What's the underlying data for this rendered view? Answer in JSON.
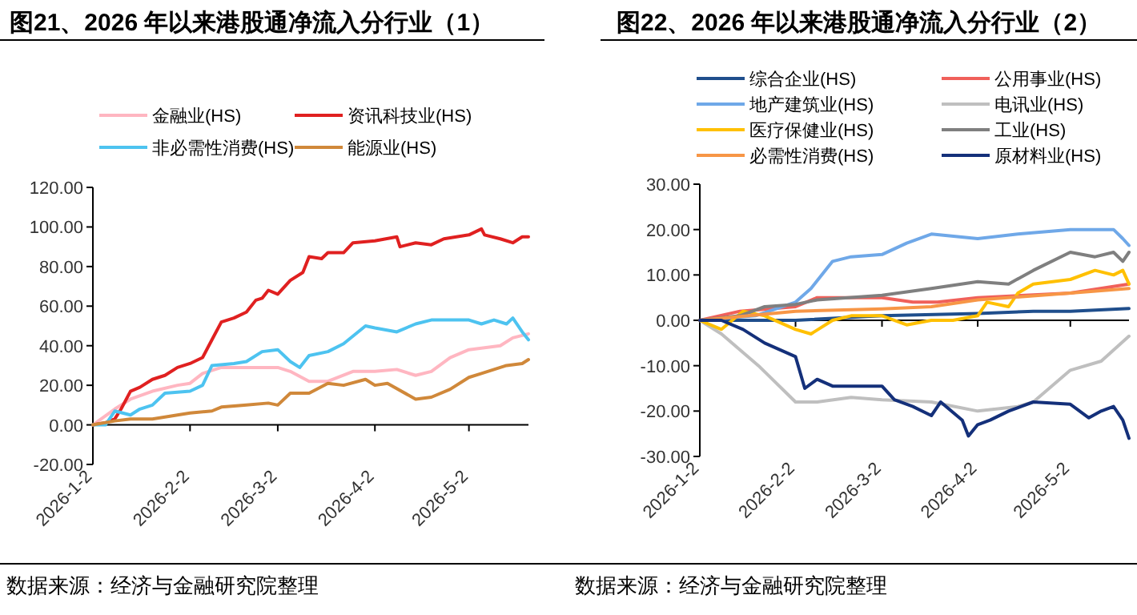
{
  "chart_data": [
    {
      "type": "line",
      "title": "图21、2026 年以来港股通净流入分行业（1）",
      "legend": "top",
      "xlim": [
        "2026-01-02",
        "2026-05-21"
      ],
      "xticks": [
        {
          "value": "2026-01-02",
          "label": "2026-1-2"
        },
        {
          "value": "2026-02-02",
          "label": "2026-2-2"
        },
        {
          "value": "2026-03-02",
          "label": "2026-3-2"
        },
        {
          "value": "2026-04-02",
          "label": "2026-4-2"
        },
        {
          "value": "2026-05-02",
          "label": "2026-5-2"
        }
      ],
      "ylim": [
        -20,
        120
      ],
      "yticks": [
        {
          "value": -20,
          "label": "-20.00"
        },
        {
          "value": 0,
          "label": "0.00"
        },
        {
          "value": 20,
          "label": "20.00"
        },
        {
          "value": 40,
          "label": "40.00"
        },
        {
          "value": 60,
          "label": "60.00"
        },
        {
          "value": 80,
          "label": "80.00"
        },
        {
          "value": 100,
          "label": "100.00"
        },
        {
          "value": 120,
          "label": "120.00"
        }
      ],
      "annotations": [
        "数据来源：经济与金融研究院整理"
      ],
      "series": [
        {
          "name": "金融业(HS)",
          "color": "#ffb6c1",
          "x": [
            "2026-01-02",
            "2026-01-09",
            "2026-01-14",
            "2026-01-21",
            "2026-01-29",
            "2026-02-02",
            "2026-02-06",
            "2026-02-12",
            "2026-02-23",
            "2026-03-02",
            "2026-03-06",
            "2026-03-12",
            "2026-03-18",
            "2026-03-26",
            "2026-04-02",
            "2026-04-09",
            "2026-04-15",
            "2026-04-20",
            "2026-04-26",
            "2026-05-02",
            "2026-05-12",
            "2026-05-16",
            "2026-05-21"
          ],
          "values": [
            0,
            8,
            13,
            17,
            20,
            21,
            26,
            29,
            29,
            29,
            27,
            22,
            22,
            27,
            27,
            28,
            25,
            27,
            34,
            38,
            40,
            44,
            46
          ]
        },
        {
          "name": "资讯科技业(HS)",
          "color": "#e02020",
          "x": [
            "2026-01-02",
            "2026-01-06",
            "2026-01-09",
            "2026-01-11",
            "2026-01-14",
            "2026-01-17",
            "2026-01-21",
            "2026-01-25",
            "2026-01-29",
            "2026-02-02",
            "2026-02-06",
            "2026-02-09",
            "2026-02-12",
            "2026-02-16",
            "2026-02-20",
            "2026-02-23",
            "2026-02-25",
            "2026-02-27",
            "2026-03-02",
            "2026-03-06",
            "2026-03-10",
            "2026-03-12",
            "2026-03-16",
            "2026-03-18",
            "2026-03-23",
            "2026-03-26",
            "2026-04-02",
            "2026-04-09",
            "2026-04-10",
            "2026-04-15",
            "2026-04-20",
            "2026-04-24",
            "2026-05-02",
            "2026-05-06",
            "2026-05-07",
            "2026-05-12",
            "2026-05-16",
            "2026-05-19",
            "2026-05-21"
          ],
          "values": [
            0,
            1,
            3,
            8,
            17,
            19,
            23,
            25,
            29,
            31,
            34,
            43,
            52,
            54,
            57,
            63,
            64,
            68,
            66,
            73,
            77,
            85,
            84,
            87,
            87,
            92,
            93,
            95,
            90,
            92,
            91,
            94,
            96,
            99,
            96,
            94,
            92,
            95,
            95
          ]
        },
        {
          "name": "非必需性消费(HS)",
          "color": "#4dc3f0",
          "x": [
            "2026-01-02",
            "2026-01-06",
            "2026-01-09",
            "2026-01-14",
            "2026-01-17",
            "2026-01-21",
            "2026-01-25",
            "2026-02-02",
            "2026-02-06",
            "2026-02-09",
            "2026-02-16",
            "2026-02-20",
            "2026-02-25",
            "2026-03-02",
            "2026-03-06",
            "2026-03-09",
            "2026-03-12",
            "2026-03-18",
            "2026-03-23",
            "2026-03-30",
            "2026-04-02",
            "2026-04-09",
            "2026-04-15",
            "2026-04-20",
            "2026-04-26",
            "2026-05-02",
            "2026-05-06",
            "2026-05-10",
            "2026-05-14",
            "2026-05-16",
            "2026-05-19",
            "2026-05-21"
          ],
          "values": [
            0,
            0,
            7,
            5,
            8,
            10,
            16,
            17,
            20,
            30,
            31,
            32,
            37,
            38,
            32,
            29,
            35,
            37,
            41,
            50,
            49,
            47,
            51,
            53,
            53,
            53,
            51,
            53,
            51,
            54,
            47,
            43
          ]
        },
        {
          "name": "能源业(HS)",
          "color": "#d0883a",
          "x": [
            "2026-01-02",
            "2026-01-09",
            "2026-01-14",
            "2026-01-21",
            "2026-01-29",
            "2026-02-02",
            "2026-02-09",
            "2026-02-12",
            "2026-02-20",
            "2026-02-27",
            "2026-03-02",
            "2026-03-06",
            "2026-03-12",
            "2026-03-18",
            "2026-03-23",
            "2026-03-30",
            "2026-04-02",
            "2026-04-06",
            "2026-04-15",
            "2026-04-20",
            "2026-04-26",
            "2026-05-02",
            "2026-05-06",
            "2026-05-10",
            "2026-05-14",
            "2026-05-19",
            "2026-05-21"
          ],
          "values": [
            0,
            2,
            3,
            3,
            5,
            6,
            7,
            9,
            10,
            11,
            10,
            16,
            16,
            21,
            20,
            23,
            20,
            21,
            13,
            14,
            18,
            24,
            26,
            28,
            30,
            31,
            33
          ]
        }
      ]
    },
    {
      "type": "line",
      "title": "图22、2026 年以来港股通净流入分行业（2）",
      "legend": "top",
      "xlim": [
        "2026-01-02",
        "2026-05-21"
      ],
      "xticks": [
        {
          "value": "2026-01-02",
          "label": "2026-1-2"
        },
        {
          "value": "2026-02-02",
          "label": "2026-2-2"
        },
        {
          "value": "2026-03-02",
          "label": "2026-3-2"
        },
        {
          "value": "2026-04-02",
          "label": "2026-4-2"
        },
        {
          "value": "2026-05-02",
          "label": "2026-5-2"
        }
      ],
      "ylim": [
        -30,
        30
      ],
      "yticks": [
        {
          "value": -30,
          "label": "-30.00"
        },
        {
          "value": -20,
          "label": "-20.00"
        },
        {
          "value": -10,
          "label": "-10.00"
        },
        {
          "value": 0,
          "label": "0.00"
        },
        {
          "value": 10,
          "label": "10.00"
        },
        {
          "value": 20,
          "label": "20.00"
        },
        {
          "value": 30,
          "label": "30.00"
        }
      ],
      "annotations": [
        "数据来源：经济与金融研究院整理"
      ],
      "series": [
        {
          "name": "综合企业(HS)",
          "color": "#1f4e8c",
          "x": [
            "2026-01-02",
            "2026-02-02",
            "2026-03-02",
            "2026-04-02",
            "2026-04-20",
            "2026-05-02",
            "2026-05-21"
          ],
          "values": [
            0,
            0,
            1,
            1.5,
            2,
            2,
            2.6
          ]
        },
        {
          "name": "公用事业(HS)",
          "color": "#f0605a",
          "x": [
            "2026-01-02",
            "2026-01-15",
            "2026-02-02",
            "2026-02-09",
            "2026-03-02",
            "2026-03-12",
            "2026-03-20",
            "2026-04-02",
            "2026-05-02",
            "2026-05-21"
          ],
          "values": [
            0,
            2,
            3,
            5,
            5,
            4,
            4,
            5,
            6,
            8
          ]
        },
        {
          "name": "地产建筑业(HS)",
          "color": "#6fa8e8",
          "x": [
            "2026-01-02",
            "2026-01-20",
            "2026-02-02",
            "2026-02-07",
            "2026-02-14",
            "2026-02-20",
            "2026-03-02",
            "2026-03-10",
            "2026-03-18",
            "2026-04-02",
            "2026-04-15",
            "2026-05-02",
            "2026-05-16",
            "2026-05-19",
            "2026-05-21"
          ],
          "values": [
            0,
            1,
            4,
            7,
            13,
            14,
            14.5,
            17,
            19,
            18,
            19,
            20,
            20,
            18,
            16.5
          ]
        },
        {
          "name": "电讯业(HS)",
          "color": "#bfbfbf",
          "x": [
            "2026-01-02",
            "2026-01-09",
            "2026-01-21",
            "2026-02-02",
            "2026-02-09",
            "2026-02-20",
            "2026-03-02",
            "2026-03-18",
            "2026-04-02",
            "2026-04-15",
            "2026-04-20",
            "2026-05-02",
            "2026-05-12",
            "2026-05-21"
          ],
          "values": [
            0,
            -3,
            -10,
            -18,
            -18,
            -17,
            -17.5,
            -18,
            -20,
            -19,
            -18,
            -11,
            -9,
            -3.5
          ]
        },
        {
          "name": "医疗保健业(HS)",
          "color": "#ffc000",
          "x": [
            "2026-01-02",
            "2026-01-09",
            "2026-01-16",
            "2026-01-23",
            "2026-02-02",
            "2026-02-07",
            "2026-02-14",
            "2026-02-20",
            "2026-03-02",
            "2026-03-10",
            "2026-03-18",
            "2026-03-25",
            "2026-04-02",
            "2026-04-05",
            "2026-04-12",
            "2026-04-15",
            "2026-04-20",
            "2026-05-02",
            "2026-05-10",
            "2026-05-16",
            "2026-05-19",
            "2026-05-21"
          ],
          "values": [
            0,
            -2,
            2,
            1,
            -2,
            -3,
            0,
            1,
            1,
            -1,
            0,
            0,
            1,
            4,
            3,
            6,
            8,
            9,
            11,
            10,
            11,
            8
          ]
        },
        {
          "name": "工业(HS)",
          "color": "#7f7f7f",
          "x": [
            "2026-01-02",
            "2026-01-15",
            "2026-01-23",
            "2026-02-02",
            "2026-02-09",
            "2026-03-02",
            "2026-03-18",
            "2026-04-02",
            "2026-04-12",
            "2026-04-20",
            "2026-05-02",
            "2026-05-10",
            "2026-05-16",
            "2026-05-19",
            "2026-05-21"
          ],
          "values": [
            0,
            1,
            3,
            3.5,
            4.5,
            5.5,
            7,
            8.5,
            8,
            11,
            15,
            14,
            15,
            13,
            15
          ]
        },
        {
          "name": "必需性消费(HS)",
          "color": "#f79646",
          "x": [
            "2026-01-02",
            "2026-02-02",
            "2026-03-02",
            "2026-03-18",
            "2026-04-02",
            "2026-05-02",
            "2026-05-21"
          ],
          "values": [
            0,
            2,
            2.5,
            3,
            4.5,
            6,
            7
          ]
        },
        {
          "name": "原材料业(HS)",
          "color": "#14307a",
          "x": [
            "2026-01-02",
            "2026-01-09",
            "2026-01-16",
            "2026-01-23",
            "2026-02-02",
            "2026-02-05",
            "2026-02-09",
            "2026-02-14",
            "2026-03-02",
            "2026-03-06",
            "2026-03-12",
            "2026-03-18",
            "2026-03-21",
            "2026-03-28",
            "2026-03-30",
            "2026-04-02",
            "2026-04-06",
            "2026-04-12",
            "2026-04-20",
            "2026-05-02",
            "2026-05-08",
            "2026-05-12",
            "2026-05-16",
            "2026-05-19",
            "2026-05-21"
          ],
          "values": [
            0,
            0,
            -2,
            -5,
            -8,
            -15,
            -13,
            -14.5,
            -14.5,
            -17.5,
            -19,
            -21,
            -18,
            -22,
            -25.5,
            -23,
            -22,
            -20,
            -18,
            -18.5,
            -21.5,
            -20,
            -19,
            -22,
            -26
          ]
        }
      ]
    }
  ]
}
